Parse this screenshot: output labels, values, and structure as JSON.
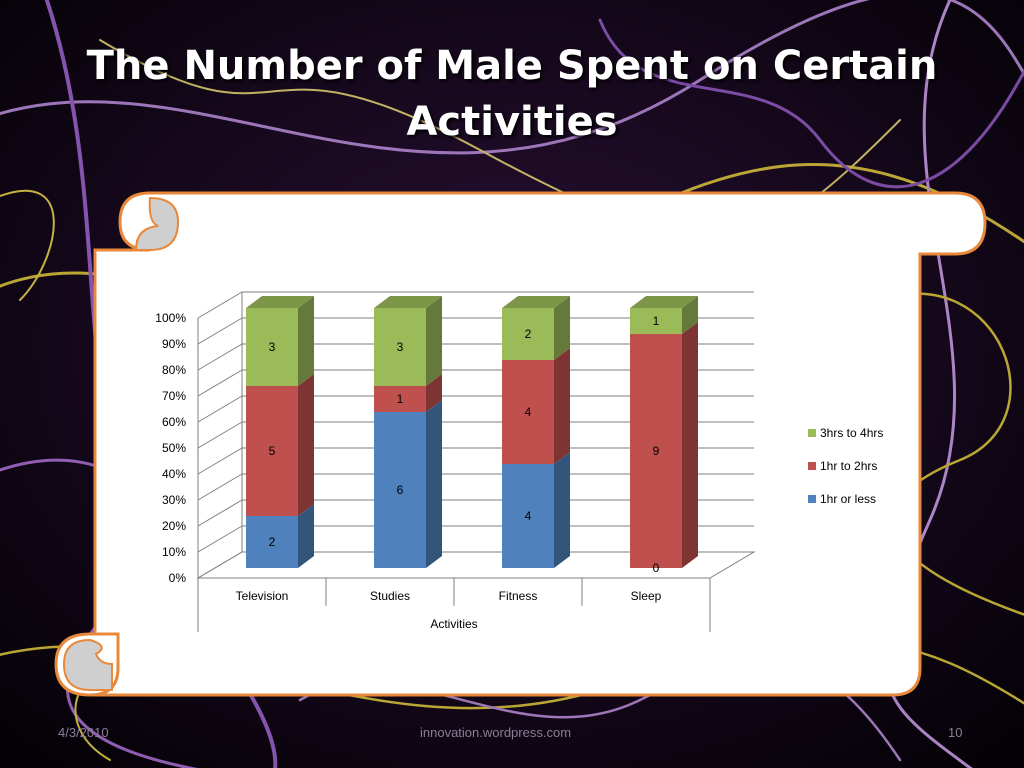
{
  "slide": {
    "title": "The Number of Male Spent on Certain Activities",
    "footer_date": "4/3/2010",
    "footer_source": "innovation.wordpress.com",
    "page_number": "10"
  },
  "colors": {
    "background": "#0b0510",
    "scroll_fill": "#ffffff",
    "scroll_border": "#e8883a",
    "scroll_curl": "#cfcfcf"
  },
  "chart_data": {
    "type": "bar",
    "stacked": true,
    "normalized": true,
    "three_d": true,
    "title": "",
    "xlabel": "Activities",
    "ylabel": "",
    "ylim": [
      0,
      100
    ],
    "yticks": [
      "0%",
      "10%",
      "20%",
      "30%",
      "40%",
      "50%",
      "60%",
      "70%",
      "80%",
      "90%",
      "100%"
    ],
    "categories": [
      "Television",
      "Studies",
      "Fitness",
      "Sleep"
    ],
    "series": [
      {
        "name": "1hr or less",
        "values": [
          2,
          6,
          4,
          0
        ],
        "color": "#4f81bd"
      },
      {
        "name": "1hr to 2hrs",
        "values": [
          5,
          1,
          4,
          9
        ],
        "color": "#c0504d"
      },
      {
        "name": "3hrs to 4hrs",
        "values": [
          3,
          3,
          2,
          1
        ],
        "color": "#9bbb59"
      }
    ],
    "legend_position": "right",
    "legend_order": [
      "3hrs to 4hrs",
      "1hr to 2hrs",
      "1hr or less"
    ],
    "grid": true
  }
}
